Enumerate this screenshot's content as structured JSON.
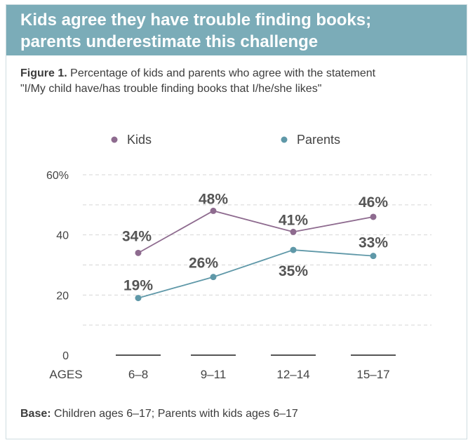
{
  "header": {
    "title_line1": "Kids agree they have trouble finding books;",
    "title_line2": "parents underestimate this challenge"
  },
  "figure": {
    "label": "Figure 1.",
    "caption_line1": "Percentage of kids and parents who agree with the statement",
    "caption_line2": "\"I/My child have/has trouble finding books that I/he/she likes\""
  },
  "footer": {
    "label": "Base:",
    "text": "Children ages 6–17; Parents with kids ages 6–17"
  },
  "chart_data": {
    "type": "line",
    "title": "Percentage of kids and parents who agree with the statement",
    "xlabel": "AGES",
    "ylabel": "",
    "categories": [
      "6–8",
      "9–11",
      "12–14",
      "15–17"
    ],
    "yticks": [
      0,
      20,
      40,
      60
    ],
    "ytick_labels": [
      "0",
      "20",
      "40",
      "60%"
    ],
    "ylim": [
      0,
      60
    ],
    "grid": true,
    "legend_position": "top",
    "series": [
      {
        "name": "Kids",
        "color": "#8e6b8f",
        "values": [
          34,
          48,
          41,
          46
        ],
        "labels": [
          "34%",
          "48%",
          "41%",
          "46%"
        ]
      },
      {
        "name": "Parents",
        "color": "#5f98a8",
        "values": [
          19,
          26,
          35,
          33
        ],
        "labels": [
          "19%",
          "26%",
          "35%",
          "33%"
        ]
      }
    ]
  }
}
